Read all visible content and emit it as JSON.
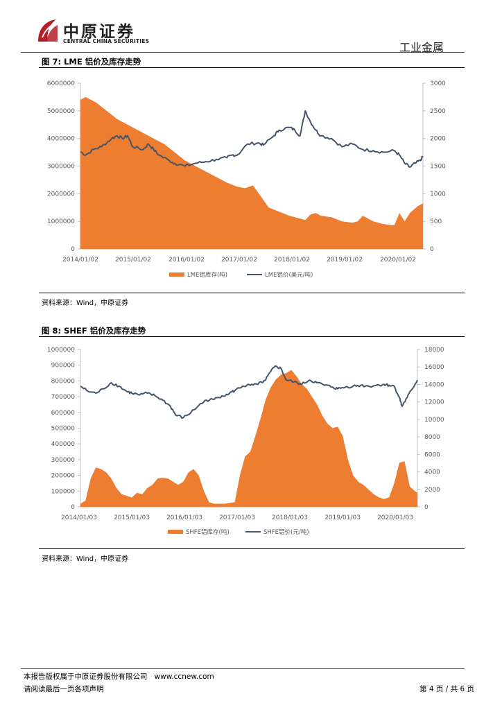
{
  "header": {
    "logo_cn": "中原证券",
    "logo_en": "CENTRAL CHINA SECURITIES",
    "section": "工业金属"
  },
  "figure7": {
    "title": "图 7:  LME 铝价及库存走势",
    "source": "资料来源：Wind，中原证券"
  },
  "figure8": {
    "title": "图 8:  SHEF 铝价及库存走势",
    "source": "资料来源：Wind，中原证券"
  },
  "footer": {
    "copyright": "本报告版权属于中原证券股份有限公司",
    "website": "www.ccnew.com",
    "disclaimer": "请阅读最后一页各项声明",
    "page": "第 4 页 / 共 6 页"
  },
  "colors": {
    "area": "#ED7D31",
    "line": "#44546A"
  },
  "chart_data": [
    {
      "type": "area+line",
      "title": "LME 铝价及库存走势",
      "x_labels": [
        "2014/01/02",
        "2015/01/02",
        "2016/01/02",
        "2017/01/02",
        "2018/01/02",
        "2019/01/02",
        "2020/01/02"
      ],
      "x_range": [
        2014.0,
        2020.55
      ],
      "y_left": {
        "min": 0,
        "max": 6000000,
        "ticks": [
          "0",
          "1000000",
          "2000000",
          "3000000",
          "4000000",
          "5000000",
          "6000000"
        ]
      },
      "y_right": {
        "min": 0,
        "max": 3000,
        "ticks": [
          "0",
          "500",
          "1000",
          "1500",
          "2000",
          "2500",
          "3000"
        ]
      },
      "series": [
        {
          "name": "LME铝库存(吨)",
          "kind": "area",
          "axis": "left",
          "points": [
            [
              2014.0,
              5400000
            ],
            [
              2014.1,
              5500000
            ],
            [
              2014.3,
              5300000
            ],
            [
              2014.5,
              5000000
            ],
            [
              2014.7,
              4700000
            ],
            [
              2014.9,
              4500000
            ],
            [
              2015.1,
              4300000
            ],
            [
              2015.3,
              4100000
            ],
            [
              2015.5,
              3900000
            ],
            [
              2015.6,
              3800000
            ],
            [
              2015.8,
              3500000
            ],
            [
              2016.0,
              3200000
            ],
            [
              2016.2,
              3000000
            ],
            [
              2016.4,
              2800000
            ],
            [
              2016.6,
              2600000
            ],
            [
              2016.8,
              2400000
            ],
            [
              2017.0,
              2250000
            ],
            [
              2017.15,
              2200000
            ],
            [
              2017.3,
              2300000
            ],
            [
              2017.45,
              1900000
            ],
            [
              2017.6,
              1500000
            ],
            [
              2017.8,
              1350000
            ],
            [
              2018.0,
              1200000
            ],
            [
              2018.2,
              1100000
            ],
            [
              2018.3,
              1050000
            ],
            [
              2018.4,
              1250000
            ],
            [
              2018.5,
              1300000
            ],
            [
              2018.6,
              1200000
            ],
            [
              2018.8,
              1150000
            ],
            [
              2019.0,
              1000000
            ],
            [
              2019.2,
              950000
            ],
            [
              2019.3,
              1000000
            ],
            [
              2019.4,
              1200000
            ],
            [
              2019.5,
              1100000
            ],
            [
              2019.6,
              1000000
            ],
            [
              2019.8,
              900000
            ],
            [
              2020.0,
              850000
            ],
            [
              2020.1,
              1300000
            ],
            [
              2020.2,
              1000000
            ],
            [
              2020.3,
              1300000
            ],
            [
              2020.45,
              1550000
            ],
            [
              2020.55,
              1650000
            ]
          ]
        },
        {
          "name": "LME铝价(美元/吨)",
          "kind": "line",
          "axis": "right",
          "points": [
            [
              2014.0,
              1760
            ],
            [
              2014.1,
              1700
            ],
            [
              2014.25,
              1800
            ],
            [
              2014.4,
              1850
            ],
            [
              2014.6,
              2000
            ],
            [
              2014.7,
              2050
            ],
            [
              2014.8,
              2000
            ],
            [
              2014.9,
              2050
            ],
            [
              2015.0,
              1850
            ],
            [
              2015.2,
              1800
            ],
            [
              2015.3,
              1900
            ],
            [
              2015.4,
              1800
            ],
            [
              2015.5,
              1700
            ],
            [
              2015.7,
              1600
            ],
            [
              2015.8,
              1550
            ],
            [
              2016.0,
              1500
            ],
            [
              2016.2,
              1550
            ],
            [
              2016.4,
              1580
            ],
            [
              2016.6,
              1620
            ],
            [
              2016.8,
              1650
            ],
            [
              2016.9,
              1700
            ],
            [
              2017.0,
              1700
            ],
            [
              2017.2,
              1900
            ],
            [
              2017.4,
              1920
            ],
            [
              2017.5,
              1880
            ],
            [
              2017.7,
              2050
            ],
            [
              2017.8,
              2150
            ],
            [
              2018.0,
              2200
            ],
            [
              2018.1,
              2150
            ],
            [
              2018.2,
              2050
            ],
            [
              2018.3,
              2500
            ],
            [
              2018.4,
              2300
            ],
            [
              2018.5,
              2150
            ],
            [
              2018.6,
              2050
            ],
            [
              2018.8,
              2000
            ],
            [
              2019.0,
              1850
            ],
            [
              2019.2,
              1900
            ],
            [
              2019.4,
              1800
            ],
            [
              2019.6,
              1780
            ],
            [
              2019.8,
              1750
            ],
            [
              2020.0,
              1780
            ],
            [
              2020.1,
              1700
            ],
            [
              2020.2,
              1550
            ],
            [
              2020.3,
              1480
            ],
            [
              2020.4,
              1550
            ],
            [
              2020.5,
              1600
            ],
            [
              2020.55,
              1680
            ]
          ]
        }
      ],
      "legend": [
        "LME铝库存(吨)",
        "LME铝价(美元/吨)"
      ]
    },
    {
      "type": "area+line",
      "title": "SHEF 铝价及库存走势",
      "x_labels": [
        "2014/01/03",
        "2015/01/03",
        "2016/01/03",
        "2017/01/03",
        "2018/01/03",
        "2019/01/03",
        "2020/01/03"
      ],
      "x_range": [
        2014.0,
        2020.55
      ],
      "y_left": {
        "min": 0,
        "max": 1000000,
        "ticks": [
          "0",
          "100000",
          "200000",
          "300000",
          "400000",
          "500000",
          "600000",
          "700000",
          "800000",
          "900000",
          "1000000"
        ]
      },
      "y_right": {
        "min": 0,
        "max": 18000,
        "ticks": [
          "0",
          "2000",
          "4000",
          "6000",
          "8000",
          "10000",
          "12000",
          "14000",
          "16000",
          "18000"
        ]
      },
      "series": [
        {
          "name": "SHFE铝库存(吨)",
          "kind": "area",
          "axis": "right_vis_left_scale",
          "points": [
            [
              2014.0,
              20000
            ],
            [
              2014.1,
              40000
            ],
            [
              2014.2,
              180000
            ],
            [
              2014.3,
              250000
            ],
            [
              2014.4,
              240000
            ],
            [
              2014.5,
              220000
            ],
            [
              2014.6,
              180000
            ],
            [
              2014.7,
              120000
            ],
            [
              2014.8,
              80000
            ],
            [
              2014.9,
              70000
            ],
            [
              2015.0,
              60000
            ],
            [
              2015.1,
              90000
            ],
            [
              2015.2,
              80000
            ],
            [
              2015.3,
              120000
            ],
            [
              2015.4,
              140000
            ],
            [
              2015.5,
              180000
            ],
            [
              2015.6,
              185000
            ],
            [
              2015.7,
              180000
            ],
            [
              2015.8,
              160000
            ],
            [
              2015.9,
              140000
            ],
            [
              2016.0,
              160000
            ],
            [
              2016.1,
              220000
            ],
            [
              2016.2,
              240000
            ],
            [
              2016.3,
              200000
            ],
            [
              2016.4,
              100000
            ],
            [
              2016.5,
              30000
            ],
            [
              2016.6,
              20000
            ],
            [
              2016.8,
              20000
            ],
            [
              2017.0,
              30000
            ],
            [
              2017.1,
              200000
            ],
            [
              2017.2,
              320000
            ],
            [
              2017.3,
              350000
            ],
            [
              2017.4,
              450000
            ],
            [
              2017.5,
              560000
            ],
            [
              2017.6,
              680000
            ],
            [
              2017.7,
              760000
            ],
            [
              2017.8,
              810000
            ],
            [
              2017.9,
              840000
            ],
            [
              2018.0,
              850000
            ],
            [
              2018.1,
              870000
            ],
            [
              2018.2,
              830000
            ],
            [
              2018.3,
              780000
            ],
            [
              2018.4,
              750000
            ],
            [
              2018.5,
              700000
            ],
            [
              2018.6,
              650000
            ],
            [
              2018.7,
              580000
            ],
            [
              2018.8,
              530000
            ],
            [
              2018.9,
              500000
            ],
            [
              2019.0,
              510000
            ],
            [
              2019.1,
              450000
            ],
            [
              2019.2,
              300000
            ],
            [
              2019.3,
              200000
            ],
            [
              2019.4,
              160000
            ],
            [
              2019.5,
              140000
            ],
            [
              2019.6,
              110000
            ],
            [
              2019.7,
              80000
            ],
            [
              2019.8,
              60000
            ],
            [
              2019.9,
              50000
            ],
            [
              2020.0,
              60000
            ],
            [
              2020.1,
              150000
            ],
            [
              2020.2,
              280000
            ],
            [
              2020.3,
              290000
            ],
            [
              2020.4,
              130000
            ],
            [
              2020.5,
              100000
            ],
            [
              2020.55,
              90000
            ]
          ]
        },
        {
          "name": "SHFE铝价(元/吨)",
          "kind": "line",
          "axis": "right",
          "points": [
            [
              2014.0,
              13800
            ],
            [
              2014.15,
              13200
            ],
            [
              2014.3,
              13000
            ],
            [
              2014.45,
              13500
            ],
            [
              2014.6,
              14200
            ],
            [
              2014.75,
              13800
            ],
            [
              2014.9,
              13200
            ],
            [
              2015.0,
              13000
            ],
            [
              2015.15,
              12800
            ],
            [
              2015.3,
              13000
            ],
            [
              2015.45,
              12700
            ],
            [
              2015.6,
              12200
            ],
            [
              2015.75,
              11500
            ],
            [
              2015.85,
              10500
            ],
            [
              2016.0,
              10200
            ],
            [
              2016.15,
              10800
            ],
            [
              2016.3,
              11600
            ],
            [
              2016.45,
              12200
            ],
            [
              2016.6,
              12300
            ],
            [
              2016.75,
              12700
            ],
            [
              2016.9,
              13000
            ],
            [
              2017.0,
              13300
            ],
            [
              2017.15,
              13800
            ],
            [
              2017.3,
              13900
            ],
            [
              2017.45,
              14000
            ],
            [
              2017.6,
              14500
            ],
            [
              2017.7,
              15500
            ],
            [
              2017.8,
              16100
            ],
            [
              2017.9,
              15800
            ],
            [
              2018.0,
              14500
            ],
            [
              2018.15,
              14300
            ],
            [
              2018.3,
              14000
            ],
            [
              2018.45,
              14500
            ],
            [
              2018.6,
              14200
            ],
            [
              2018.75,
              13900
            ],
            [
              2018.9,
              13700
            ],
            [
              2019.0,
              13500
            ],
            [
              2019.15,
              13700
            ],
            [
              2019.3,
              13800
            ],
            [
              2019.45,
              13900
            ],
            [
              2019.6,
              13800
            ],
            [
              2019.75,
              13900
            ],
            [
              2019.9,
              14000
            ],
            [
              2020.0,
              13900
            ],
            [
              2020.1,
              13800
            ],
            [
              2020.2,
              12500
            ],
            [
              2020.25,
              11500
            ],
            [
              2020.35,
              12500
            ],
            [
              2020.45,
              13500
            ],
            [
              2020.55,
              14500
            ]
          ]
        }
      ],
      "legend": [
        "SHFE铝库存(吨)",
        "SHFE铝价(元/吨)"
      ]
    }
  ]
}
